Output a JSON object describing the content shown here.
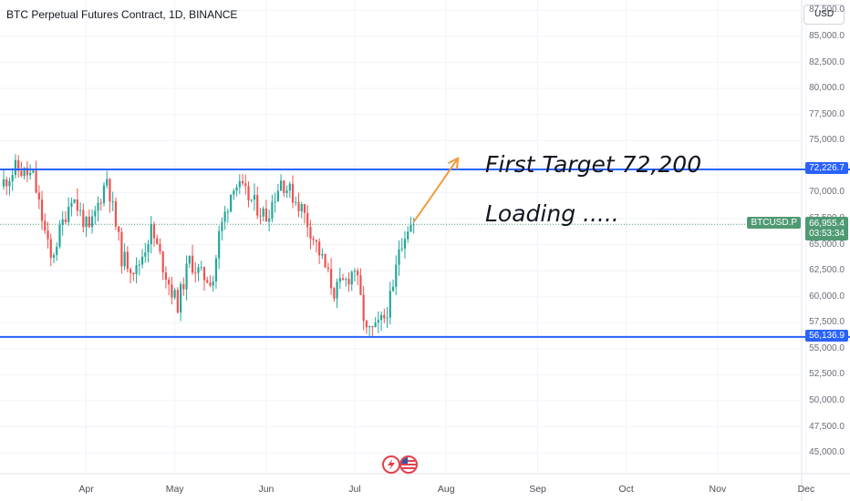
{
  "header": {
    "title": "BTC Perpetual Futures Contract, 1D, BINANCE",
    "currency_button": "USD"
  },
  "annotations": {
    "target_text": "First Target 72,200",
    "loading_text": "Loading ....."
  },
  "price_tags": {
    "resistance": {
      "label": "72,226.7",
      "value": 72226.7,
      "color": "#2962ff"
    },
    "support": {
      "label": "56,136.9",
      "value": 56136.9,
      "color": "#2962ff"
    },
    "symbol": "BTCUSD.P",
    "last_price": "66,955.4",
    "countdown": "03:53:34",
    "last_color": "#4f9a73"
  },
  "icons": {
    "left": "lightning-icon",
    "right": "us-flag-icon"
  },
  "colors": {
    "up": "#26a69a",
    "down": "#ef5350",
    "lines": "#2962ff",
    "arrow": "#f29a3a",
    "grid": "#f0f3fa"
  },
  "chart_data": {
    "type": "candlestick",
    "title": "BTC Perpetual Futures Contract, 1D, BINANCE",
    "ylim": [
      43000,
      88500
    ],
    "y_ticks": [
      "87,500.0",
      "85,000.0",
      "82,500.0",
      "80,000.0",
      "77,500.0",
      "75,000.0",
      "72,500.0",
      "70,000.0",
      "67,500.0",
      "65,000.0",
      "62,500.0",
      "60,000.0",
      "57,500.0",
      "55,000.0",
      "52,500.0",
      "50,000.0",
      "47,500.0",
      "45,000.0"
    ],
    "y_tick_values": [
      87500,
      85000,
      82500,
      80000,
      77500,
      75000,
      72500,
      70000,
      67500,
      65000,
      62500,
      60000,
      57500,
      55000,
      52500,
      50000,
      47500,
      45000
    ],
    "x_ticks": [
      "Apr",
      "May",
      "Jun",
      "Jul",
      "Aug",
      "Sep",
      "Oct",
      "Nov",
      "Dec"
    ],
    "x_tick_dates": [
      "2024-04-01",
      "2024-05-01",
      "2024-06-01",
      "2024-07-01",
      "2024-08-01",
      "2024-09-01",
      "2024-10-01",
      "2024-11-01",
      "2024-12-01"
    ],
    "x_start": "2024-03-04",
    "horizontal_lines": [
      72226.7,
      56136.9
    ],
    "projection": [
      [
        "2024-07-21",
        67200
      ],
      [
        "2024-07-26",
        69200
      ],
      [
        "2024-08-05",
        73300
      ]
    ],
    "anchors": [
      [
        "2024-03-04",
        71000
      ],
      [
        "2024-03-08",
        72300
      ],
      [
        "2024-03-14",
        71500
      ],
      [
        "2024-03-20",
        63500
      ],
      [
        "2024-03-27",
        69800
      ],
      [
        "2024-04-02",
        66200
      ],
      [
        "2024-04-08",
        71500
      ],
      [
        "2024-04-13",
        63800
      ],
      [
        "2024-04-18",
        62500
      ],
      [
        "2024-04-23",
        66400
      ],
      [
        "2024-04-30",
        60500
      ],
      [
        "2024-05-02",
        59300
      ],
      [
        "2024-05-06",
        63500
      ],
      [
        "2024-05-10",
        62000
      ],
      [
        "2024-05-14",
        61700
      ],
      [
        "2024-05-16",
        65900
      ],
      [
        "2024-05-21",
        71000
      ],
      [
        "2024-05-26",
        69500
      ],
      [
        "2024-06-01",
        67700
      ],
      [
        "2024-06-06",
        71200
      ],
      [
        "2024-06-10",
        69700
      ],
      [
        "2024-06-13",
        68500
      ],
      [
        "2024-06-18",
        65000
      ],
      [
        "2024-06-24",
        60500
      ],
      [
        "2024-06-28",
        61500
      ],
      [
        "2024-07-01",
        62800
      ],
      [
        "2024-07-05",
        56500
      ],
      [
        "2024-07-08",
        56800
      ],
      [
        "2024-07-11",
        58000
      ],
      [
        "2024-07-14",
        60500
      ],
      [
        "2024-07-16",
        64800
      ],
      [
        "2024-07-19",
        66800
      ],
      [
        "2024-07-21",
        66955.4
      ]
    ]
  }
}
